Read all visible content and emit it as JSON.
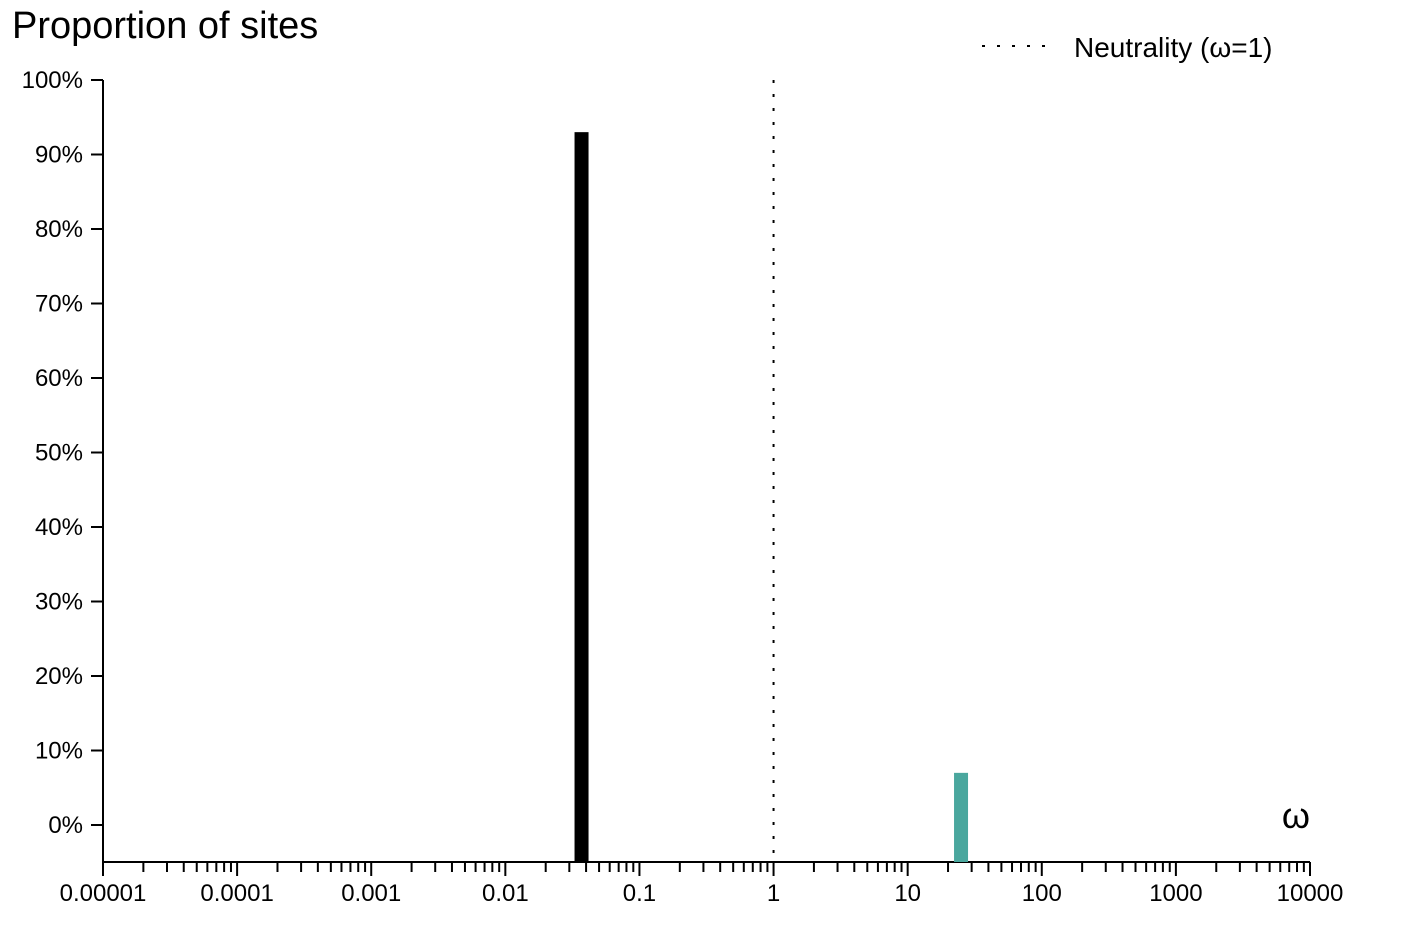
{
  "chart_data": {
    "type": "bar",
    "title": "Proportion of sites",
    "xlabel": "ω",
    "ylabel": "",
    "x_scale": "log",
    "xlim": [
      1e-05,
      10000
    ],
    "ylim": [
      -0.05,
      1.0
    ],
    "grid": false,
    "legend_position": "top-right",
    "yticks": [
      {
        "value": 1.0,
        "label": "100%"
      },
      {
        "value": 0.9,
        "label": "90%"
      },
      {
        "value": 0.8,
        "label": "80%"
      },
      {
        "value": 0.7,
        "label": "70%"
      },
      {
        "value": 0.6,
        "label": "60%"
      },
      {
        "value": 0.5,
        "label": "50%"
      },
      {
        "value": 0.4,
        "label": "40%"
      },
      {
        "value": 0.3,
        "label": "30%"
      },
      {
        "value": 0.2,
        "label": "20%"
      },
      {
        "value": 0.1,
        "label": "10%"
      },
      {
        "value": 0.0,
        "label": "0%"
      }
    ],
    "xticks": [
      {
        "value": 1e-05,
        "label": "0.00001"
      },
      {
        "value": 0.0001,
        "label": "0.0001"
      },
      {
        "value": 0.001,
        "label": "0.001"
      },
      {
        "value": 0.01,
        "label": "0.01"
      },
      {
        "value": 0.1,
        "label": "0.1"
      },
      {
        "value": 1,
        "label": "1"
      },
      {
        "value": 10,
        "label": "10"
      },
      {
        "value": 100,
        "label": "100"
      },
      {
        "value": 1000,
        "label": "1000"
      },
      {
        "value": 10000,
        "label": "10000"
      }
    ],
    "bars": [
      {
        "omega": 0.037,
        "proportion": 0.93,
        "color": "#000000"
      },
      {
        "omega": 25,
        "proportion": 0.07,
        "color": "#4aa79e"
      }
    ],
    "reference_line": {
      "omega": 1,
      "label": "Neutrality (ω=1)",
      "style": "dotted"
    }
  }
}
